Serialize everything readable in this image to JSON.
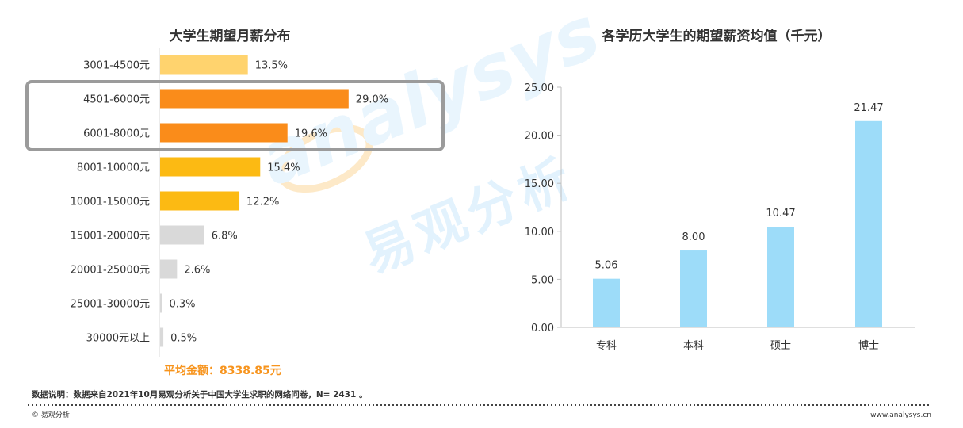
{
  "watermark": {
    "brand": "analysys",
    "cn": "易观分析"
  },
  "chart_data": [
    {
      "type": "bar",
      "orientation": "horizontal",
      "title": "大学生期望月薪分布",
      "categories": [
        "3001-4500元",
        "4501-6000元",
        "6001-8000元",
        "8001-10000元",
        "10001-15000元",
        "15001-20000元",
        "20001-25000元",
        "25001-30000元",
        "30000元以上"
      ],
      "values": [
        13.5,
        29.0,
        19.6,
        15.4,
        12.2,
        6.8,
        2.6,
        0.3,
        0.5
      ],
      "value_labels": [
        "13.5%",
        "29.0%",
        "19.6%",
        "15.4%",
        "12.2%",
        "6.8%",
        "2.6%",
        "0.3%",
        "0.5%"
      ],
      "bar_colors": [
        "#ffd36e",
        "#fa8c1a",
        "#fa8c1a",
        "#fcba13",
        "#fcba13",
        "#d9d9d9",
        "#d9d9d9",
        "#d9d9d9",
        "#d9d9d9"
      ],
      "highlight": [
        "4501-6000元",
        "6001-8000元"
      ],
      "xlim": [
        0,
        35
      ],
      "annotation": "平均金额：8338.85元"
    },
    {
      "type": "bar",
      "title": "各学历大学生的期望薪资均值（千元）",
      "categories": [
        "专科",
        "本科",
        "硕士",
        "博士"
      ],
      "values": [
        5.06,
        8.0,
        10.47,
        21.47
      ],
      "value_labels": [
        "5.06",
        "8.00",
        "10.47",
        "21.47"
      ],
      "color": "#9ddcf9",
      "ylim": [
        0,
        25
      ],
      "yticks": [
        "0.00",
        "5.00",
        "10.00",
        "15.00",
        "20.00",
        "25.00"
      ],
      "grid": false
    }
  ],
  "footer": {
    "note": "数据说明：数据来自2021年10月易观分析关于中国大学生求职的网络问卷，N= 2431 。",
    "copyright": "© 易观分析",
    "site": "www.analysys.cn"
  }
}
